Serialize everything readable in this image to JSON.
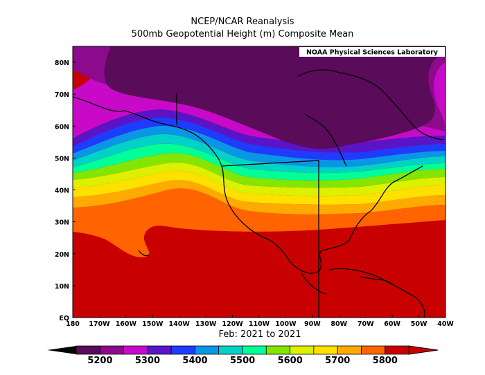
{
  "title_line1": "NCEP/NCAR Reanalysis",
  "title_line2": "500mb Geopotential Height (m) Composite Mean",
  "credit": "NOAA Physical Sciences Laboratory",
  "period": "Feb: 2021 to 2021",
  "lat_labels": [
    "80N",
    "70N",
    "60N",
    "50N",
    "40N",
    "30N",
    "20N",
    "10N",
    "EQ"
  ],
  "lon_labels": [
    "180",
    "170W",
    "160W",
    "150W",
    "140W",
    "130W",
    "120W",
    "110W",
    "100W",
    "90W",
    "80W",
    "70W",
    "60W",
    "50W",
    "40W"
  ],
  "colorbar": {
    "labels": [
      "5200",
      "5300",
      "5400",
      "5500",
      "5600",
      "5700",
      "5800"
    ],
    "colors": [
      "#5a0b5a",
      "#8c0a8c",
      "#c80ac8",
      "#5a14c8",
      "#1e3cff",
      "#0a96e6",
      "#00d2c8",
      "#00ff96",
      "#82e600",
      "#dcf000",
      "#ffe100",
      "#ffaa00",
      "#ff6400",
      "#c80000"
    ]
  }
}
